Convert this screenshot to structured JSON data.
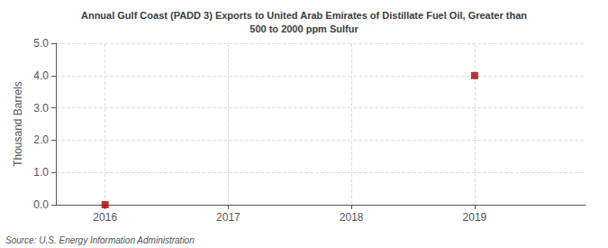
{
  "chart_data": {
    "type": "scatter",
    "title": "Annual Gulf Coast (PADD 3) Exports to United Arab Emirates of Distillate Fuel Oil, Greater than\n500 to 2000 ppm Sulfur",
    "ylabel": "Thousand Barrels",
    "annotation": "Source: U.S. Energy Information Administration",
    "x": [
      2016,
      2019
    ],
    "values": [
      0,
      4.0
    ],
    "color": "#aa0000",
    "marker": "square",
    "xlim": [
      2015.6,
      2019.9
    ],
    "xticks": [
      2016,
      2017,
      2018,
      2019
    ],
    "ylim": [
      0.0,
      5.0
    ],
    "yticks": [
      {
        "value": 0.0,
        "label": "0.0"
      },
      {
        "value": 1.0,
        "label": "1.0"
      },
      {
        "value": 2.0,
        "label": "2.0"
      },
      {
        "value": 3.0,
        "label": "3.0"
      },
      {
        "value": 4.0,
        "label": "4.0"
      },
      {
        "value": 5.0,
        "label": "5.0"
      }
    ],
    "grid": true
  }
}
